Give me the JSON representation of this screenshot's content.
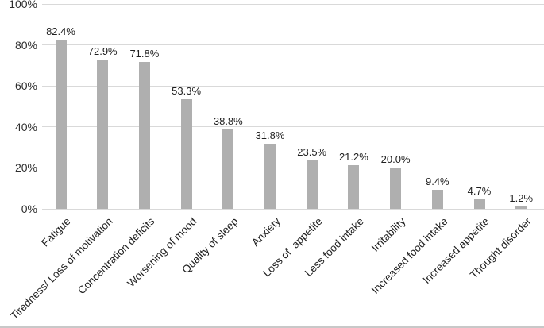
{
  "figure": {
    "background_color": "#ffffff",
    "bottom_border_color": "#c8c8c8"
  },
  "chart_data": {
    "type": "bar",
    "title": "",
    "xlabel": "",
    "ylabel": "",
    "ylim": [
      0,
      100
    ],
    "grid": "horizontal",
    "legend": "none",
    "bar_color": "#afafaf",
    "gridline_color": "#d9d9d9",
    "tick_label_color": "#2e2e2e",
    "data_label_color": "#1f1f1f",
    "categories": [
      "Fatigue",
      "Tiredness/ Loss of motivation",
      "Concentration deficits",
      "Worsening of mood",
      "Quality of sleep",
      "Anxiety",
      "Loss of  appetite",
      "Less food intake",
      "Irritability",
      "Increased food intake",
      "Increased appetite",
      "Thought disorder"
    ],
    "values": [
      82.4,
      72.9,
      71.8,
      53.3,
      38.8,
      31.8,
      23.5,
      21.2,
      20.0,
      9.4,
      4.7,
      1.2
    ],
    "data_labels": [
      "82.4%",
      "72.9%",
      "71.8%",
      "53.3%",
      "38.8%",
      "31.8%",
      "23.5%",
      "21.2%",
      "20.0%",
      "9.4%",
      "4.7%",
      "1.2%"
    ],
    "y_ticks": [
      {
        "value": 0,
        "label": "0%"
      },
      {
        "value": 20,
        "label": "20%"
      },
      {
        "value": 40,
        "label": "40%"
      },
      {
        "value": 60,
        "label": "60%"
      },
      {
        "value": 80,
        "label": "80%"
      },
      {
        "value": 100,
        "label": "100%"
      }
    ]
  }
}
